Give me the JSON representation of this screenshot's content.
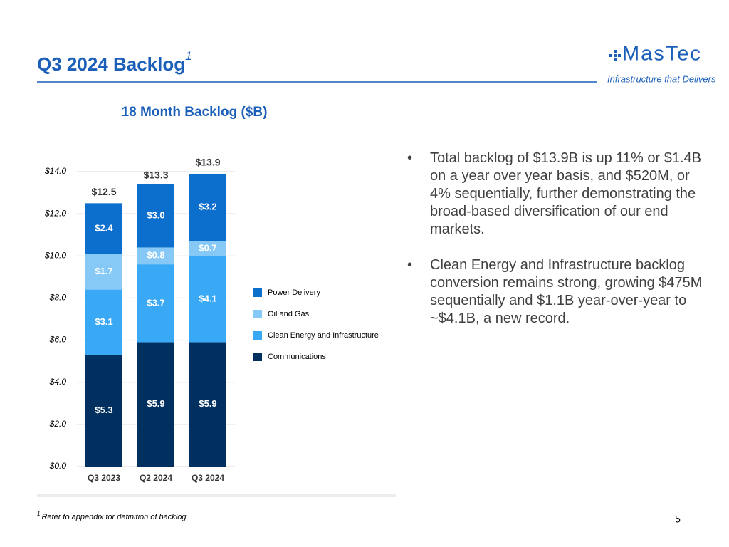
{
  "header": {
    "title": "Q3 2024 Backlog",
    "title_note": "1",
    "logo": "MasTec",
    "tagline": "Infrastructure that Delivers"
  },
  "chart_data": {
    "type": "stacked_bar",
    "title": "18 Month Backlog ($B)",
    "categories": [
      "Q3 2023",
      "Q2 2024",
      "Q3 2024"
    ],
    "series": [
      {
        "name": "Communications",
        "color": "#00305f",
        "values": [
          5.3,
          5.9,
          5.9
        ],
        "value_labels": [
          "$5.3",
          "$5.9",
          "$5.9"
        ]
      },
      {
        "name": "Clean Energy and Infrastructure",
        "color": "#3aa9f5",
        "values": [
          3.1,
          3.7,
          4.1
        ],
        "value_labels": [
          "$3.1",
          "$3.7",
          "$4.1"
        ]
      },
      {
        "name": "Oil and Gas",
        "color": "#86c9f6",
        "values": [
          1.7,
          0.8,
          0.7
        ],
        "value_labels": [
          "$1.7",
          "$0.8",
          "$0.7"
        ]
      },
      {
        "name": "Power Delivery",
        "color": "#0c6fcd",
        "values": [
          2.4,
          3.0,
          3.2
        ],
        "value_labels": [
          "$2.4",
          "$3.0",
          "$3.2"
        ]
      }
    ],
    "totals": [
      12.5,
      13.3,
      13.9
    ],
    "total_labels": [
      "$12.5",
      "$13.3",
      "$13.9"
    ],
    "ylim": [
      0,
      14
    ],
    "yticks": [
      {
        "value": 0,
        "label": "$0.0"
      },
      {
        "value": 2,
        "label": "$2.0"
      },
      {
        "value": 4,
        "label": "$4.0"
      },
      {
        "value": 6,
        "label": "$6.0"
      },
      {
        "value": 8,
        "label": "$8.0"
      },
      {
        "value": 10,
        "label": "$10.0"
      },
      {
        "value": 12,
        "label": "$12.0"
      },
      {
        "value": 14,
        "label": "$14.0"
      }
    ],
    "grid": true,
    "legend": "right"
  },
  "bullets": [
    "Total backlog of $13.9B is up 11% or $1.4B on a year over year basis, and $520M, or 4% sequentially, further demonstrating the broad-based diversification of our end markets.",
    "Clean Energy and Infrastructure backlog conversion remains strong, growing $475M sequentially and $1.1B year-over-year to ~$4.1B, a new record."
  ],
  "footnote": {
    "note": "1",
    "text": "Refer to appendix for definition of backlog."
  },
  "page_number": "5"
}
